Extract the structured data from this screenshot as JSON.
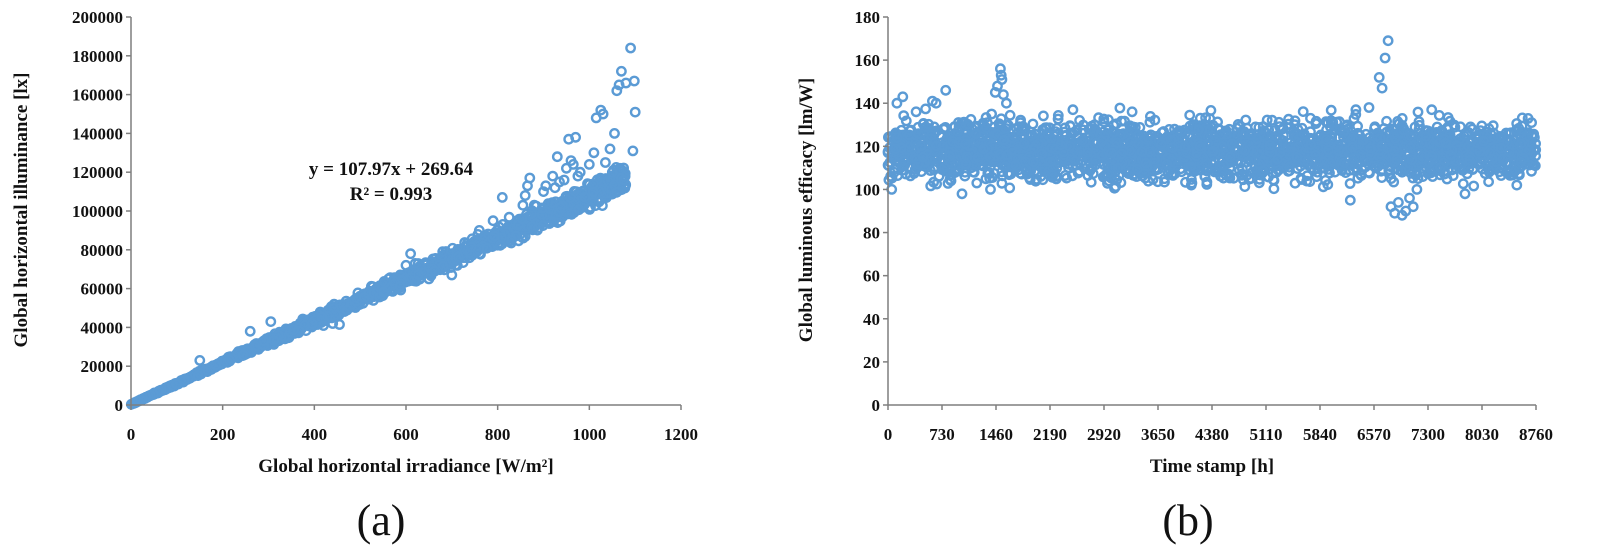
{
  "colors": {
    "marker": "#5b9bd5",
    "axis": "#7f7f7f",
    "text": "#111111"
  },
  "chart_data": [
    {
      "type": "scatter",
      "panel_label": "(a)",
      "xlabel": "Global horizontal irradiance [W/m²]",
      "ylabel": "Global horizontal illuminance [lx]",
      "xlim": [
        0,
        1200
      ],
      "ylim": [
        0,
        200000
      ],
      "xticks": [
        "0",
        "200",
        "400",
        "600",
        "800",
        "1000",
        "1200"
      ],
      "yticks": [
        "0",
        "20000",
        "40000",
        "60000",
        "80000",
        "100000",
        "120000",
        "140000",
        "160000",
        "180000",
        "200000"
      ],
      "grid": false,
      "legend": "none",
      "trendline": {
        "slope": 107.97,
        "intercept": 269.64,
        "equation": "y = 107.97x + 269.64",
        "r2": "R² = 0.993"
      },
      "series": [
        {
          "marker": "circle",
          "trend": {
            "x_min": 0,
            "x_max": 1080,
            "slope": 107.97,
            "intercept": 269.64,
            "scatter_fraction": 0.03
          },
          "points": [
            [
              150,
              23000
            ],
            [
              260,
              38000
            ],
            [
              305,
              43000
            ],
            [
              420,
              41000
            ],
            [
              440,
              42000
            ],
            [
              455,
              41500
            ],
            [
              600,
              72000
            ],
            [
              610,
              78000
            ],
            [
              620,
              73000
            ],
            [
              650,
              65000
            ],
            [
              680,
              79000
            ],
            [
              700,
              67000
            ],
            [
              760,
              90000
            ],
            [
              790,
              95000
            ],
            [
              810,
              107000
            ],
            [
              855,
              103000
            ],
            [
              860,
              108000
            ],
            [
              865,
              113000
            ],
            [
              870,
              117000
            ],
            [
              880,
              103000
            ],
            [
              900,
              110000
            ],
            [
              905,
              113000
            ],
            [
              920,
              118000
            ],
            [
              925,
              112000
            ],
            [
              930,
              128000
            ],
            [
              935,
              115000
            ],
            [
              945,
              116000
            ],
            [
              950,
              122000
            ],
            [
              955,
              137000
            ],
            [
              960,
              126000
            ],
            [
              965,
              124000
            ],
            [
              970,
              138000
            ],
            [
              975,
              118000
            ],
            [
              980,
              120000
            ],
            [
              1000,
              124000
            ],
            [
              1010,
              130000
            ],
            [
              1015,
              148000
            ],
            [
              1025,
              152000
            ],
            [
              1030,
              150000
            ],
            [
              1035,
              125000
            ],
            [
              1045,
              132000
            ],
            [
              1050,
              120000
            ],
            [
              1055,
              140000
            ],
            [
              1060,
              162000
            ],
            [
              1065,
              165000
            ],
            [
              1070,
              172000
            ],
            [
              1075,
              116000
            ],
            [
              1080,
              166000
            ],
            [
              1090,
              184000
            ],
            [
              1095,
              131000
            ],
            [
              1098,
              167000
            ],
            [
              1100,
              151000
            ]
          ]
        }
      ]
    },
    {
      "type": "scatter",
      "panel_label": "(b)",
      "xlabel": "Time stamp [h]",
      "ylabel": "Global luminous efficacy [lm/W]",
      "xlim": [
        0,
        8760
      ],
      "ylim": [
        0,
        180
      ],
      "xticks": [
        "0",
        "730",
        "1460",
        "2190",
        "2920",
        "3650",
        "4380",
        "5110",
        "5840",
        "6570",
        "7300",
        "8030",
        "8760"
      ],
      "yticks": [
        "0",
        "20",
        "40",
        "60",
        "80",
        "100",
        "120",
        "140",
        "160",
        "180"
      ],
      "grid": false,
      "legend": "none",
      "series": [
        {
          "marker": "circle",
          "band": {
            "x_min": 0,
            "x_max": 8760,
            "y_center": 118,
            "y_spread": 12,
            "y_min": 100,
            "y_max": 138
          },
          "points": [
            [
              50,
              100
            ],
            [
              120,
              140
            ],
            [
              200,
              143
            ],
            [
              380,
              136
            ],
            [
              600,
              141
            ],
            [
              650,
              140
            ],
            [
              780,
              146
            ],
            [
              1000,
              98
            ],
            [
              1200,
              103
            ],
            [
              1400,
              135
            ],
            [
              1450,
              145
            ],
            [
              1480,
              148
            ],
            [
              1520,
              156
            ],
            [
              1530,
              153
            ],
            [
              1540,
              151
            ],
            [
              1560,
              144
            ],
            [
              1600,
              140
            ],
            [
              2500,
              137
            ],
            [
              3300,
              136
            ],
            [
              4100,
              102
            ],
            [
              6250,
              95
            ],
            [
              6500,
              108
            ],
            [
              6640,
              152
            ],
            [
              6680,
              147
            ],
            [
              6720,
              161
            ],
            [
              6760,
              169
            ],
            [
              6800,
              92
            ],
            [
              6850,
              89
            ],
            [
              6900,
              94
            ],
            [
              6950,
              88
            ],
            [
              7000,
              90
            ],
            [
              7050,
              96
            ],
            [
              7100,
              92
            ],
            [
              7150,
              100
            ],
            [
              7350,
              137
            ],
            [
              7800,
              98
            ],
            [
              8500,
              102
            ],
            [
              8700,
              131
            ]
          ]
        }
      ]
    }
  ]
}
